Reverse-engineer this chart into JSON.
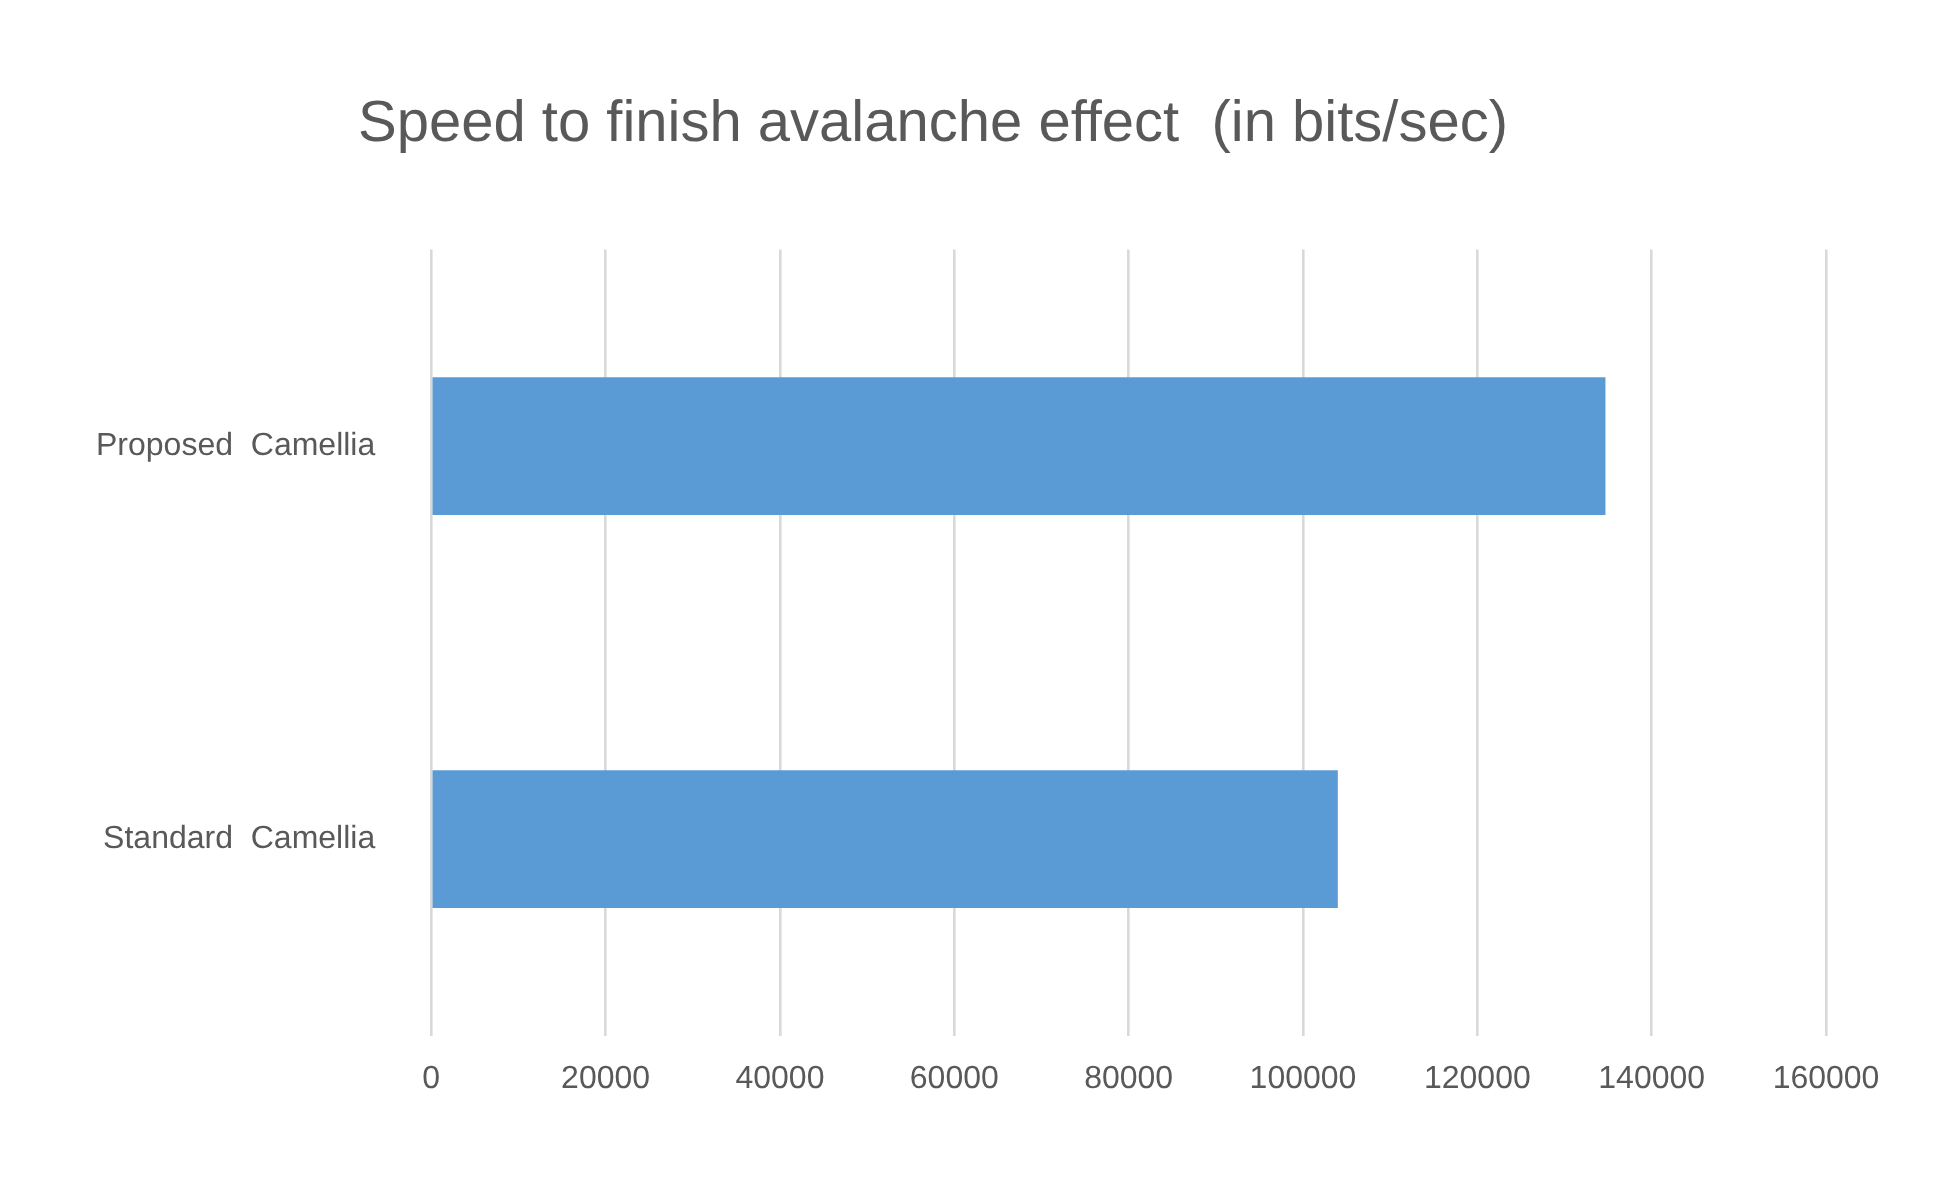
{
  "chart_data": {
    "type": "bar",
    "orientation": "horizontal",
    "title": "Speed to finish avalanche effect  (in bits/sec)",
    "categories": [
      "Proposed  Camellia",
      "Standard  Camellia"
    ],
    "values": [
      134700,
      104000
    ],
    "color": "#5b9bd5",
    "xlim": [
      0,
      160000
    ],
    "xticks": [
      0,
      20000,
      40000,
      60000,
      80000,
      100000,
      120000,
      140000,
      160000
    ],
    "grid": "x",
    "legend": false
  }
}
